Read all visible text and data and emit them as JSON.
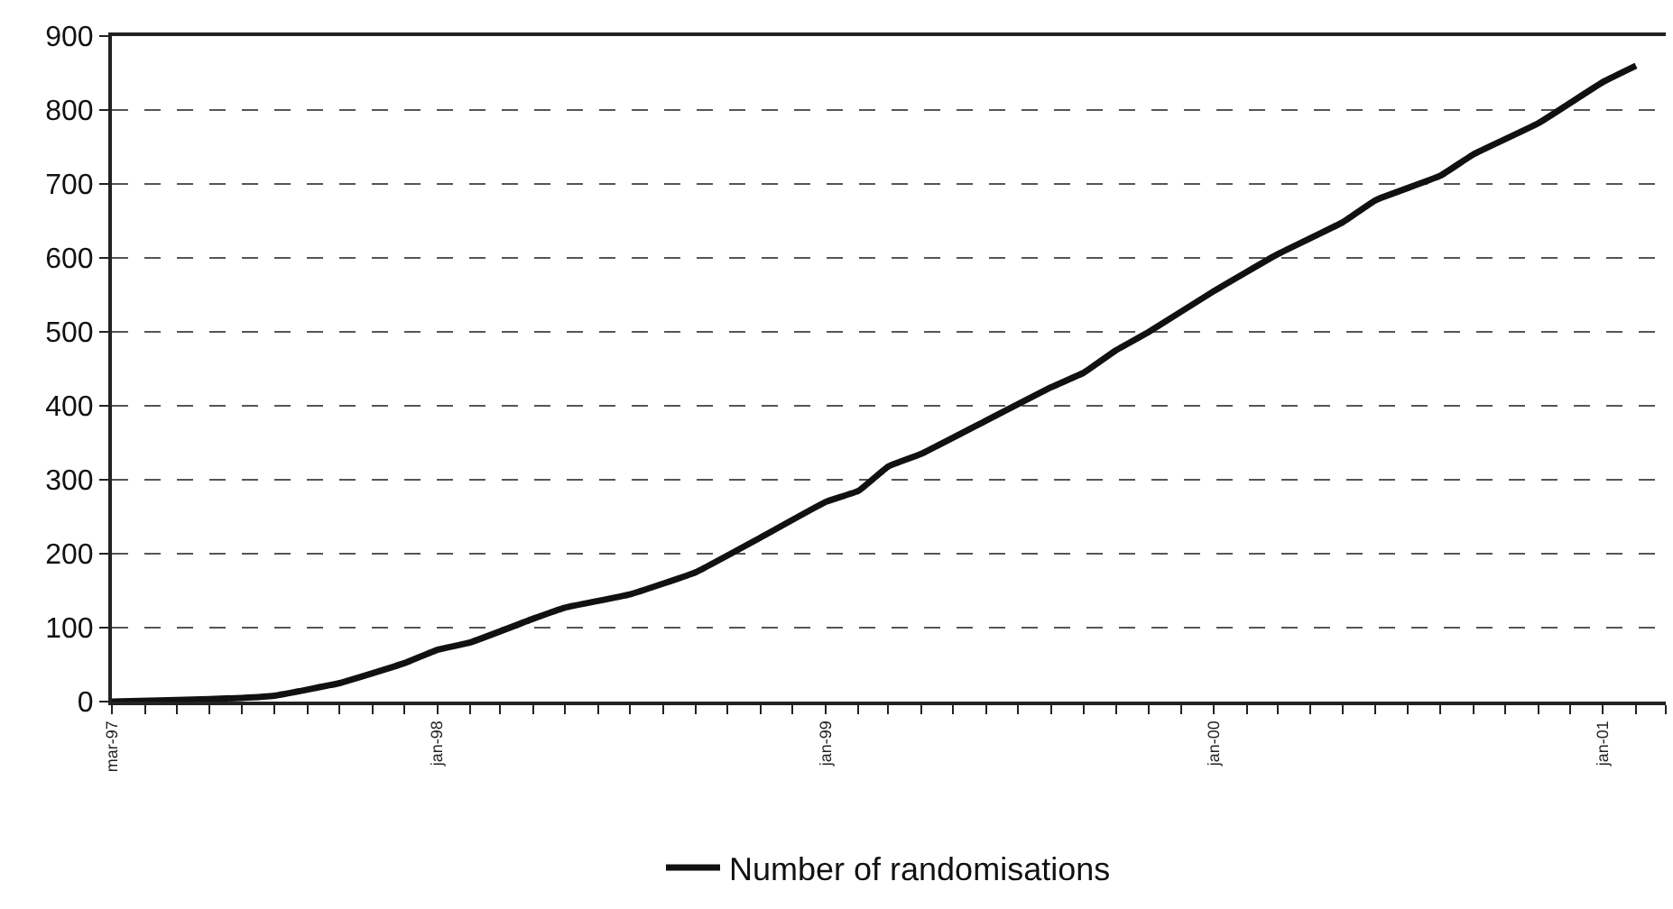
{
  "chart_data": {
    "type": "line",
    "x": [
      "1997-03",
      "1997-05",
      "1997-07",
      "1997-08",
      "1997-10",
      "1997-12",
      "1998-01",
      "1998-02",
      "1998-04",
      "1998-05",
      "1998-07",
      "1998-09",
      "1998-11",
      "1999-01",
      "1999-02",
      "1999-03",
      "1999-04",
      "1999-06",
      "1999-08",
      "1999-09",
      "1999-10",
      "1999-11",
      "2000-01",
      "2000-03",
      "2000-05",
      "2000-06",
      "2000-08",
      "2000-09",
      "2000-11",
      "2001-01",
      "2001-02"
    ],
    "series": [
      {
        "name": "Number of randomisations",
        "color": "#111111",
        "values": [
          0,
          2,
          5,
          8,
          25,
          52,
          70,
          80,
          112,
          127,
          145,
          175,
          222,
          270,
          285,
          318,
          335,
          380,
          425,
          445,
          475,
          500,
          555,
          605,
          648,
          678,
          711,
          740,
          782,
          838,
          860
        ]
      }
    ],
    "xlim": [
      "1997-03",
      "2001-03"
    ],
    "xticks": [
      {
        "value": "1997-03",
        "label": "mar-97"
      },
      {
        "value": "1997-04",
        "label": null
      },
      {
        "value": "1997-05",
        "label": null
      },
      {
        "value": "1997-06",
        "label": null
      },
      {
        "value": "1997-07",
        "label": null
      },
      {
        "value": "1997-08",
        "label": null
      },
      {
        "value": "1997-09",
        "label": null
      },
      {
        "value": "1997-10",
        "label": null
      },
      {
        "value": "1997-11",
        "label": null
      },
      {
        "value": "1997-12",
        "label": null
      },
      {
        "value": "1998-01",
        "label": "jan-98"
      },
      {
        "value": "1998-02",
        "label": null
      },
      {
        "value": "1998-03",
        "label": null
      },
      {
        "value": "1998-04",
        "label": null
      },
      {
        "value": "1998-05",
        "label": null
      },
      {
        "value": "1998-06",
        "label": null
      },
      {
        "value": "1998-07",
        "label": null
      },
      {
        "value": "1998-08",
        "label": null
      },
      {
        "value": "1998-09",
        "label": null
      },
      {
        "value": "1998-10",
        "label": null
      },
      {
        "value": "1998-11",
        "label": null
      },
      {
        "value": "1998-12",
        "label": null
      },
      {
        "value": "1999-01",
        "label": "jan-99"
      },
      {
        "value": "1999-02",
        "label": null
      },
      {
        "value": "1999-03",
        "label": null
      },
      {
        "value": "1999-04",
        "label": null
      },
      {
        "value": "1999-05",
        "label": null
      },
      {
        "value": "1999-06",
        "label": null
      },
      {
        "value": "1999-07",
        "label": null
      },
      {
        "value": "1999-08",
        "label": null
      },
      {
        "value": "1999-09",
        "label": null
      },
      {
        "value": "1999-10",
        "label": null
      },
      {
        "value": "1999-11",
        "label": null
      },
      {
        "value": "1999-12",
        "label": null
      },
      {
        "value": "2000-01",
        "label": "jan-00"
      },
      {
        "value": "2000-02",
        "label": null
      },
      {
        "value": "2000-03",
        "label": null
      },
      {
        "value": "2000-04",
        "label": null
      },
      {
        "value": "2000-05",
        "label": null
      },
      {
        "value": "2000-06",
        "label": null
      },
      {
        "value": "2000-07",
        "label": null
      },
      {
        "value": "2000-08",
        "label": null
      },
      {
        "value": "2000-09",
        "label": null
      },
      {
        "value": "2000-10",
        "label": null
      },
      {
        "value": "2000-11",
        "label": null
      },
      {
        "value": "2000-12",
        "label": null
      },
      {
        "value": "2001-01",
        "label": "jan-01"
      },
      {
        "value": "2001-02",
        "label": null
      },
      {
        "value": "2001-03",
        "label": null
      }
    ],
    "ylim": [
      0,
      900
    ],
    "yticks": [
      0,
      100,
      200,
      300,
      400,
      500,
      600,
      700,
      800,
      900
    ],
    "grid": "y",
    "legend": "bottom",
    "marker": "none",
    "line_style": "solid"
  }
}
